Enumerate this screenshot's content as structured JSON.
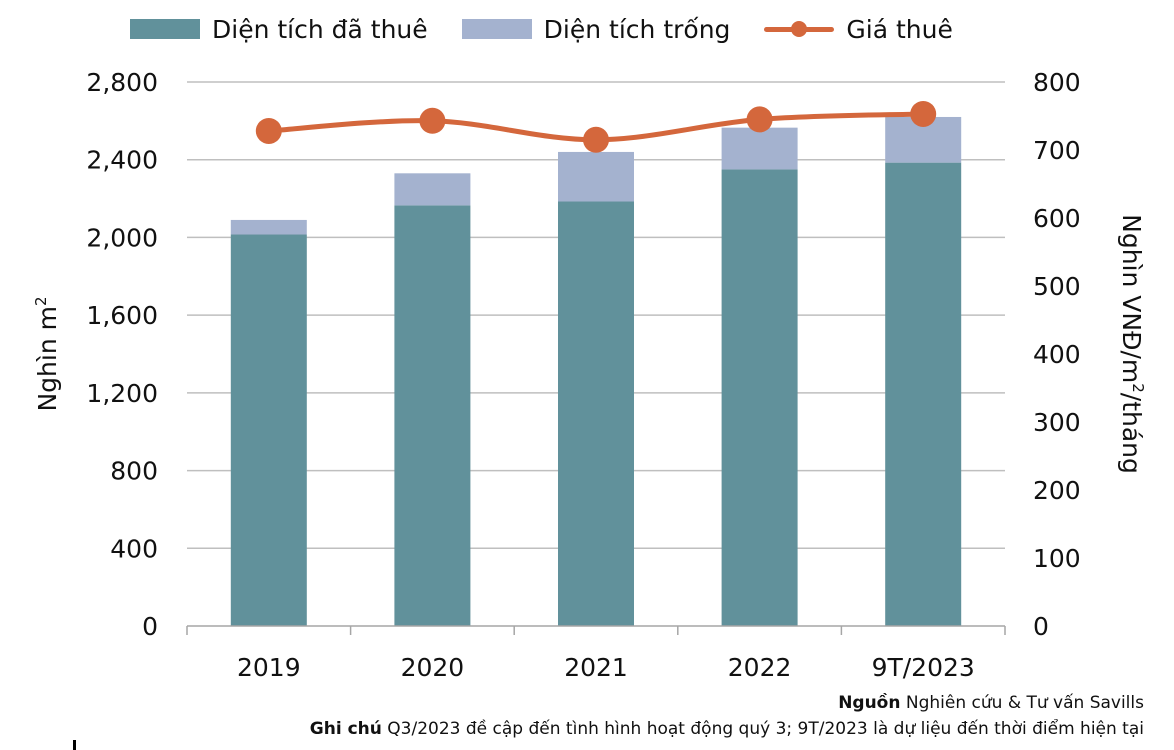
{
  "chart_data": {
    "type": "bar",
    "stacked": true,
    "categories": [
      "2019",
      "2020",
      "2021",
      "2022",
      "9T/2023"
    ],
    "series": [
      {
        "name": "Diện tích đã thuê",
        "values": [
          2015,
          2165,
          2185,
          2350,
          2385
        ],
        "axis": "left",
        "color": "#61919b"
      },
      {
        "name": "Diện tích trống",
        "values": [
          75,
          165,
          255,
          215,
          235
        ],
        "axis": "left",
        "color": "#a4b2cf"
      },
      {
        "name": "Giá thuê",
        "type": "line",
        "values": [
          728,
          743,
          715,
          745,
          753
        ],
        "axis": "right",
        "color": "#d4673c"
      }
    ],
    "left_axis": {
      "label_main": "Nghìn m",
      "label_sup": "2",
      "ylim": [
        0,
        2800
      ],
      "ticks": [
        "0",
        "400",
        "800",
        "1,200",
        "1,600",
        "2,000",
        "2,400",
        "2,800"
      ]
    },
    "right_axis": {
      "label_parts": [
        "Nghìn VNĐ/m",
        "2",
        "/tháng"
      ],
      "ylim": [
        0,
        800
      ],
      "ticks": [
        "0",
        "100",
        "200",
        "300",
        "400",
        "500",
        "600",
        "700",
        "800"
      ]
    },
    "grid": true,
    "legend_position": "top"
  },
  "notes": {
    "source_label": "Nguồn",
    "source_text": " Nghiên cứu & Tư vấn Savills",
    "note_label": "Ghi chú",
    "note_text": " Q3/2023 đề cập đến tình hình hoạt động quý 3; 9T/2023 là dự liệu đến thời điểm hiện tại"
  }
}
